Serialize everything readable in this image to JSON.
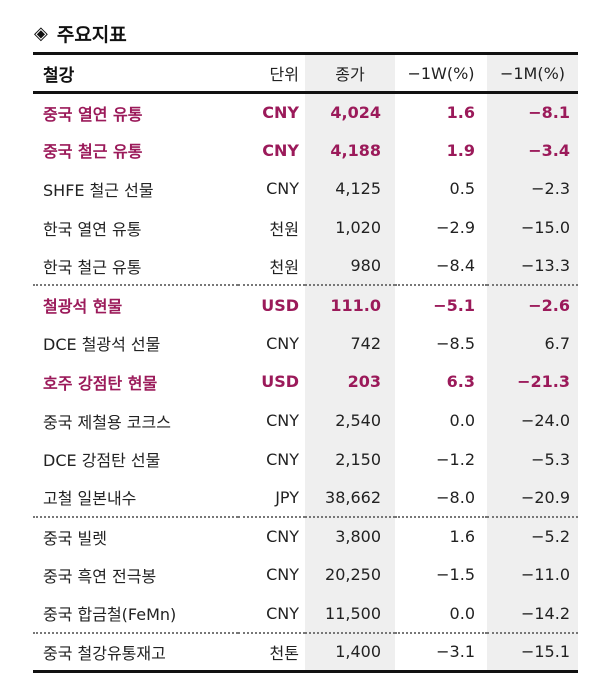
{
  "title": {
    "icon": "◈",
    "text": "주요지표"
  },
  "colors": {
    "highlight": "#9b1a5a",
    "shade": "#efefef",
    "border": "#111111"
  },
  "table": {
    "headers": {
      "name": "철강",
      "unit": "단위",
      "close": "종가",
      "w": "−1W(%)",
      "m": "−1M(%)"
    },
    "rows": [
      {
        "name": "중국 열연 유통",
        "unit": "CNY",
        "close": "4,024",
        "w": "1.6",
        "m": "−8.1",
        "highlight": true
      },
      {
        "name": "중국 철근 유통",
        "unit": "CNY",
        "close": "4,188",
        "w": "1.9",
        "m": "−3.4",
        "highlight": true
      },
      {
        "name": "SHFE 철근 선물",
        "unit": "CNY",
        "close": "4,125",
        "w": "0.5",
        "m": "−2.3"
      },
      {
        "name": "한국 열연 유통",
        "unit": "천원",
        "close": "1,020",
        "w": "−2.9",
        "m": "−15.0"
      },
      {
        "name": "한국 철근 유통",
        "unit": "천원",
        "close": "980",
        "w": "−8.4",
        "m": "−13.3"
      },
      {
        "name": "철광석 현물",
        "unit": "USD",
        "close": "111.0",
        "w": "−5.1",
        "m": "−2.6",
        "highlight": true,
        "separator": true
      },
      {
        "name": "DCE 철광석 선물",
        "unit": "CNY",
        "close": "742",
        "w": "−8.5",
        "m": "6.7"
      },
      {
        "name": "호주 강점탄 현물",
        "unit": "USD",
        "close": "203",
        "w": "6.3",
        "m": "−21.3",
        "highlight": true
      },
      {
        "name": "중국 제철용 코크스",
        "unit": "CNY",
        "close": "2,540",
        "w": "0.0",
        "m": "−24.0"
      },
      {
        "name": "DCE 강점탄 선물",
        "unit": "CNY",
        "close": "2,150",
        "w": "−1.2",
        "m": "−5.3"
      },
      {
        "name": "고철 일본내수",
        "unit": "JPY",
        "close": "38,662",
        "w": "−8.0",
        "m": "−20.9"
      },
      {
        "name": "중국 빌렛",
        "unit": "CNY",
        "close": "3,800",
        "w": "1.6",
        "m": "−5.2",
        "separator": true
      },
      {
        "name": "중국 흑연 전극봉",
        "unit": "CNY",
        "close": "20,250",
        "w": "−1.5",
        "m": "−11.0"
      },
      {
        "name": "중국 합금철(FeMn)",
        "unit": "CNY",
        "close": "11,500",
        "w": "0.0",
        "m": "−14.2"
      },
      {
        "name": "중국 철강유통재고",
        "unit": "천톤",
        "close": "1,400",
        "w": "−3.1",
        "m": "−15.1",
        "separator": true
      }
    ]
  }
}
